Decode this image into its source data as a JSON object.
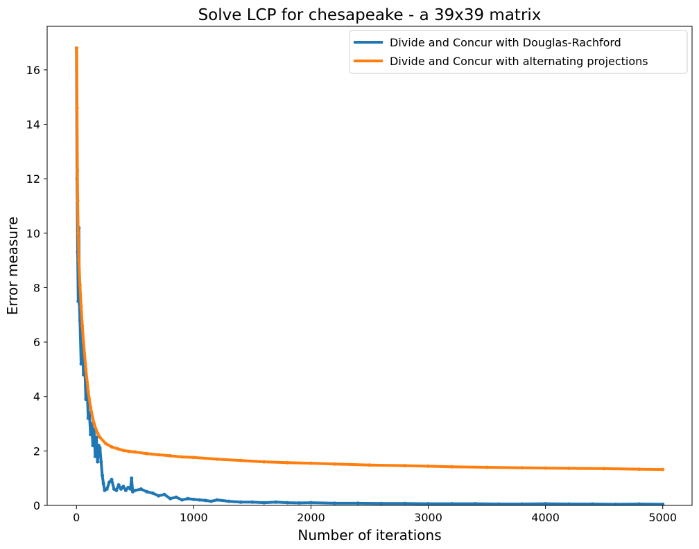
{
  "chart_data": {
    "type": "line",
    "title": "Solve LCP for chesapeake - a 39x39 matrix",
    "xlabel": "Number of iterations",
    "ylabel": "Error measure",
    "xlim": [
      -250,
      5250
    ],
    "ylim": [
      0,
      17.6
    ],
    "xticks": [
      0,
      1000,
      2000,
      3000,
      4000,
      5000
    ],
    "yticks": [
      0,
      2,
      4,
      6,
      8,
      10,
      12,
      14,
      16
    ],
    "grid": false,
    "legend_position": "top-right",
    "series": [
      {
        "name": "Divide and Concur with Douglas-Rachford",
        "color": "#1f77b4",
        "x": [
          0,
          5,
          10,
          15,
          20,
          25,
          30,
          40,
          50,
          60,
          70,
          80,
          90,
          100,
          110,
          120,
          130,
          140,
          150,
          160,
          170,
          180,
          190,
          200,
          210,
          220,
          230,
          240,
          260,
          280,
          300,
          320,
          340,
          360,
          380,
          400,
          420,
          440,
          460,
          470,
          480,
          500,
          550,
          600,
          650,
          700,
          750,
          800,
          850,
          900,
          950,
          1000,
          1050,
          1100,
          1150,
          1200,
          1300,
          1400,
          1500,
          1600,
          1700,
          1800,
          1900,
          2000,
          2200,
          2400,
          2600,
          2800,
          3000,
          3200,
          3400,
          3600,
          3800,
          4000,
          4200,
          4400,
          4600,
          4800,
          5000
        ],
        "y": [
          16.8,
          12.0,
          9.3,
          7.5,
          10.2,
          7.4,
          6.8,
          5.2,
          6.0,
          4.8,
          5.3,
          3.9,
          4.4,
          3.2,
          3.4,
          2.6,
          3.0,
          2.2,
          2.8,
          1.8,
          2.5,
          1.6,
          2.2,
          2.1,
          1.6,
          1.1,
          0.8,
          0.55,
          0.6,
          0.85,
          0.95,
          0.6,
          0.55,
          0.75,
          0.6,
          0.7,
          0.55,
          0.65,
          0.6,
          1.0,
          0.5,
          0.55,
          0.6,
          0.5,
          0.45,
          0.35,
          0.4,
          0.25,
          0.3,
          0.2,
          0.25,
          0.22,
          0.2,
          0.18,
          0.15,
          0.2,
          0.15,
          0.12,
          0.12,
          0.1,
          0.12,
          0.1,
          0.09,
          0.1,
          0.08,
          0.08,
          0.07,
          0.07,
          0.06,
          0.06,
          0.06,
          0.05,
          0.05,
          0.06,
          0.05,
          0.05,
          0.04,
          0.05,
          0.04
        ]
      },
      {
        "name": "Divide and Concur with alternating projections",
        "color": "#ff7f0e",
        "x": [
          0,
          2,
          5,
          8,
          10,
          15,
          20,
          30,
          40,
          50,
          60,
          80,
          100,
          120,
          150,
          180,
          200,
          250,
          300,
          350,
          400,
          450,
          500,
          600,
          700,
          800,
          900,
          1000,
          1200,
          1400,
          1600,
          1800,
          2000,
          2200,
          2500,
          2800,
          3000,
          3200,
          3500,
          3800,
          4000,
          4200,
          4500,
          4800,
          5000
        ],
        "y": [
          16.8,
          16.8,
          14.6,
          12.3,
          11.2,
          10.0,
          9.0,
          8.1,
          7.3,
          6.6,
          6.0,
          5.0,
          4.2,
          3.6,
          3.0,
          2.65,
          2.5,
          2.27,
          2.15,
          2.08,
          2.02,
          1.98,
          1.96,
          1.9,
          1.86,
          1.82,
          1.78,
          1.76,
          1.7,
          1.65,
          1.6,
          1.57,
          1.55,
          1.52,
          1.48,
          1.46,
          1.44,
          1.42,
          1.4,
          1.38,
          1.37,
          1.36,
          1.35,
          1.33,
          1.32
        ]
      }
    ]
  }
}
